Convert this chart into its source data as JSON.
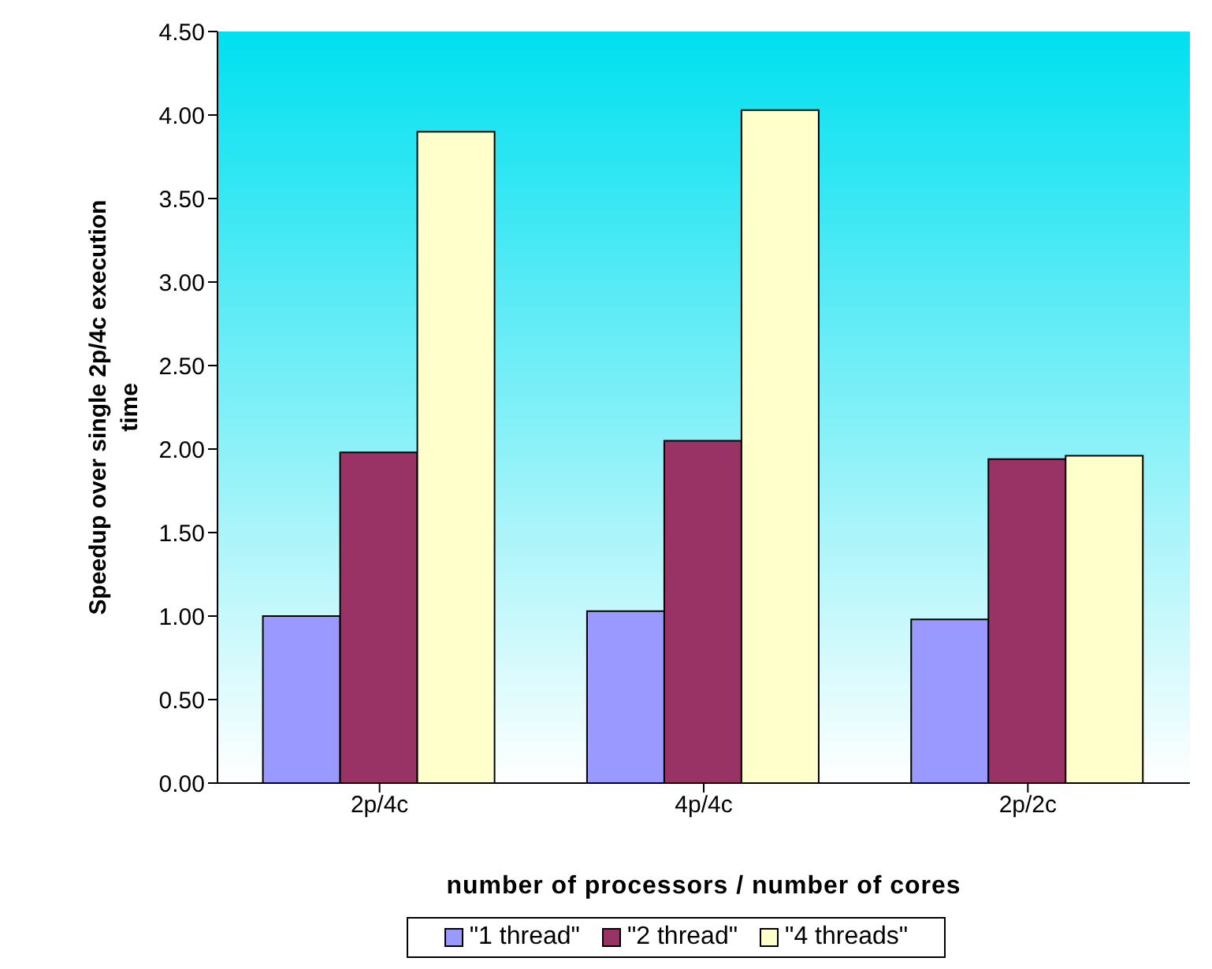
{
  "chart_data": {
    "type": "bar",
    "xlabel": "number of processors / number of cores",
    "ylabel": "Speedup over single 2p/4c execution time",
    "categories": [
      "2p/4c",
      "4p/4c",
      "2p/2c"
    ],
    "series": [
      {
        "name": "\"1 thread\"",
        "color": "#9999ff",
        "values": [
          1.0,
          1.03,
          0.98
        ]
      },
      {
        "name": "\"2 thread\"",
        "color": "#993366",
        "values": [
          1.98,
          2.05,
          1.94
        ]
      },
      {
        "name": "\"4 threads\"",
        "color": "#ffffcc",
        "values": [
          3.9,
          4.03,
          1.96
        ]
      }
    ],
    "ylim": [
      0,
      4.5
    ],
    "yticks": [
      {
        "value": 0,
        "label": "0.00"
      },
      {
        "value": 0.5,
        "label": "0.50"
      },
      {
        "value": 1,
        "label": "1.00"
      },
      {
        "value": 1.5,
        "label": "1.50"
      },
      {
        "value": 2,
        "label": "2.00"
      },
      {
        "value": 2.5,
        "label": "2.50"
      },
      {
        "value": 3,
        "label": "3.00"
      },
      {
        "value": 3.5,
        "label": "3.50"
      },
      {
        "value": 4,
        "label": "4.00"
      },
      {
        "value": 4.5,
        "label": "4.50"
      }
    ],
    "legend": "bottom"
  }
}
